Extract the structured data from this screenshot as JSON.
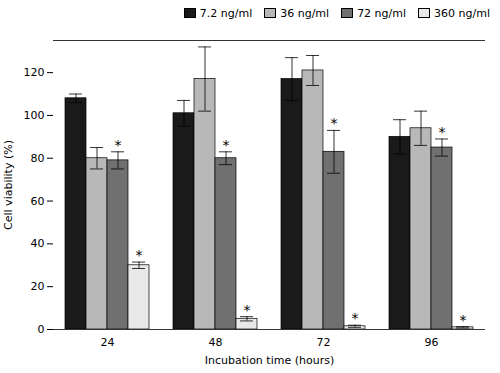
{
  "chart_data": {
    "type": "bar",
    "categories": [
      "24",
      "48",
      "72",
      "96"
    ],
    "xlabel": "Incubation time (hours)",
    "ylabel": "Cell viability (%)",
    "series": [
      {
        "name": "7.2 ng/ml",
        "color": "#1a1a1a",
        "values": [
          108,
          101,
          117,
          90
        ],
        "errors": [
          2,
          6,
          10,
          8
        ],
        "significant": [
          false,
          false,
          false,
          false
        ]
      },
      {
        "name": "36 ng/ml",
        "color": "#b8b8b8",
        "values": [
          80,
          117,
          121,
          94
        ],
        "errors": [
          5,
          15,
          7,
          8
        ],
        "significant": [
          false,
          false,
          false,
          false
        ]
      },
      {
        "name": "72 ng/ml",
        "color": "#707070",
        "values": [
          79,
          80,
          83,
          85
        ],
        "errors": [
          4,
          3,
          10,
          4
        ],
        "significant": [
          true,
          true,
          true,
          true
        ]
      },
      {
        "name": "360 ng/ml",
        "color": "#e8e8e8",
        "values": [
          30,
          5,
          1.5,
          1
        ],
        "errors": [
          1.5,
          1,
          0.5,
          0.3
        ],
        "significant": [
          true,
          true,
          true,
          true
        ]
      }
    ],
    "significance_mark": "*",
    "ylim": [
      0,
      135
    ],
    "yticks": [
      0,
      20,
      40,
      60,
      80,
      100,
      120
    ],
    "grid": false,
    "legend": "upper right"
  }
}
